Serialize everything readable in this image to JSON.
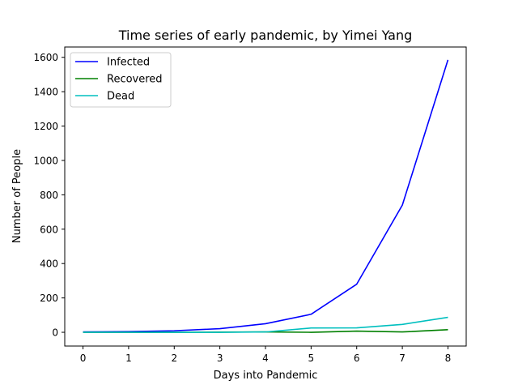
{
  "chart_data": {
    "type": "line",
    "title": "Time series of early pandemic, by Yimei Yang",
    "xlabel": "Days into Pandemic",
    "ylabel": "Number of People",
    "x": [
      0,
      1,
      2,
      3,
      4,
      5,
      6,
      7,
      8
    ],
    "xlim": [
      -0.4,
      8.4
    ],
    "ylim": [
      -80,
      1660
    ],
    "xticks": [
      "0",
      "1",
      "2",
      "3",
      "4",
      "5",
      "6",
      "7",
      "8"
    ],
    "yticks": [
      "0",
      "200",
      "400",
      "600",
      "800",
      "1000",
      "1200",
      "1400",
      "1600"
    ],
    "grid": false,
    "legend_position": "top-left",
    "series": [
      {
        "name": "Infected",
        "color": "#0000ff",
        "values": [
          2,
          4,
          9,
          21,
          50,
          105,
          280,
          740,
          1585
        ]
      },
      {
        "name": "Recovered",
        "color": "#008000",
        "values": [
          0,
          0,
          0,
          1,
          2,
          0,
          7,
          2,
          15
        ]
      },
      {
        "name": "Dead",
        "color": "#00bfbf",
        "values": [
          0,
          0,
          0,
          0,
          2,
          25,
          26,
          46,
          87
        ]
      }
    ]
  }
}
